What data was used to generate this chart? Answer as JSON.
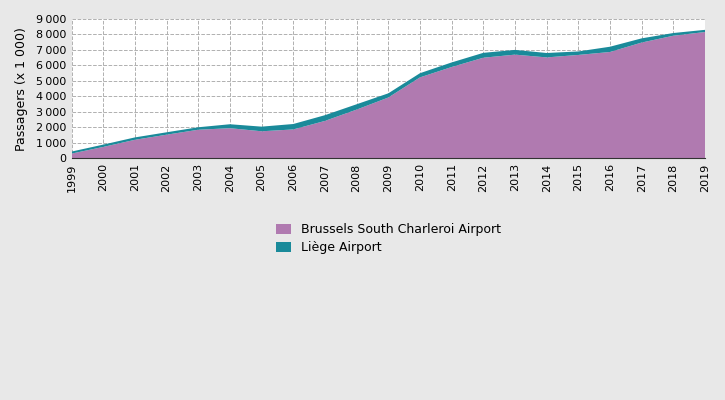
{
  "years": [
    1999,
    2000,
    2001,
    2002,
    2003,
    2004,
    2005,
    2006,
    2007,
    2008,
    2009,
    2010,
    2011,
    2012,
    2013,
    2014,
    2015,
    2016,
    2017,
    2018,
    2019
  ],
  "charleroi": [
    310,
    740,
    1200,
    1530,
    1850,
    1950,
    1750,
    1870,
    2420,
    3150,
    3930,
    5230,
    5900,
    6500,
    6700,
    6520,
    6680,
    6870,
    7480,
    7920,
    8160
  ],
  "liege": [
    130,
    150,
    155,
    155,
    160,
    255,
    300,
    350,
    370,
    345,
    270,
    270,
    295,
    315,
    305,
    285,
    225,
    340,
    270,
    175,
    140
  ],
  "charleroi_color": "#b07ab0",
  "liege_color": "#1a8a9a",
  "ylabel": "Passagers (x 1 000)",
  "ylim": [
    0,
    9000
  ],
  "yticks": [
    0,
    1000,
    2000,
    3000,
    4000,
    5000,
    6000,
    7000,
    8000,
    9000
  ],
  "legend_charleroi": "Brussels South Charleroi Airport",
  "legend_liege": "Liège Airport",
  "fig_bg_color": "#e8e8e8",
  "plot_bg_color": "#ffffff",
  "grid_color": "#b0b0b0",
  "grid_linestyle": "--"
}
